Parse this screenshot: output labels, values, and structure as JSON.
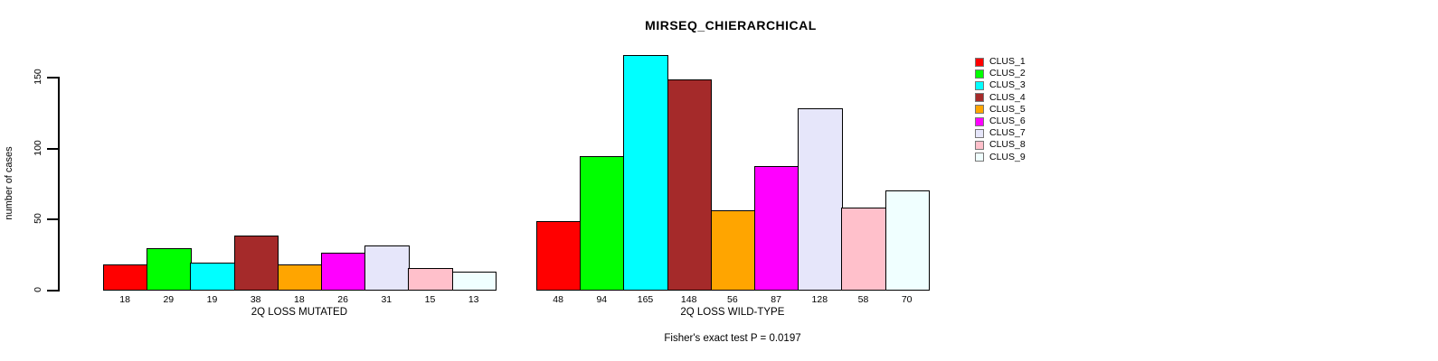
{
  "title": "MIRSEQ_CHIERARCHICAL",
  "footer": "Fisher's exact test P = 0.0197",
  "y_axis": {
    "label": "number of cases",
    "ticks": [
      0,
      50,
      100,
      150
    ]
  },
  "legend": {
    "position": "right",
    "entries": [
      {
        "label": "CLUS_1",
        "color": "#FF0000"
      },
      {
        "label": "CLUS_2",
        "color": "#00FF00"
      },
      {
        "label": "CLUS_3",
        "color": "#00FFFF"
      },
      {
        "label": "CLUS_4",
        "color": "#A52A2A"
      },
      {
        "label": "CLUS_5",
        "color": "#FFA500"
      },
      {
        "label": "CLUS_6",
        "color": "#FF00FF"
      },
      {
        "label": "CLUS_7",
        "color": "#E6E6FA"
      },
      {
        "label": "CLUS_8",
        "color": "#FFC0CB"
      },
      {
        "label": "CLUS_9",
        "color": "#F0FFFF"
      }
    ]
  },
  "chart_data": [
    {
      "type": "bar",
      "title": "",
      "xlabel": "2Q LOSS MUTATED",
      "ylabel": "number of cases",
      "categories": [
        "CLUS_1",
        "CLUS_2",
        "CLUS_3",
        "CLUS_4",
        "CLUS_5",
        "CLUS_6",
        "CLUS_7",
        "CLUS_8",
        "CLUS_9"
      ],
      "values": [
        18,
        29,
        19,
        38,
        18,
        26,
        31,
        15,
        13
      ],
      "colors": [
        "#FF0000",
        "#00FF00",
        "#00FFFF",
        "#A52A2A",
        "#FFA500",
        "#FF00FF",
        "#E6E6FA",
        "#FFC0CB",
        "#F0FFFF"
      ],
      "ylim": [
        0,
        165
      ],
      "grid": false,
      "value_labels_below_bars": true
    },
    {
      "type": "bar",
      "title": "",
      "xlabel": "2Q LOSS WILD-TYPE",
      "ylabel": "number of cases",
      "categories": [
        "CLUS_1",
        "CLUS_2",
        "CLUS_3",
        "CLUS_4",
        "CLUS_5",
        "CLUS_6",
        "CLUS_7",
        "CLUS_8",
        "CLUS_9"
      ],
      "values": [
        48,
        94,
        165,
        148,
        56,
        87,
        128,
        58,
        70
      ],
      "colors": [
        "#FF0000",
        "#00FF00",
        "#00FFFF",
        "#A52A2A",
        "#FFA500",
        "#FF00FF",
        "#E6E6FA",
        "#FFC0CB",
        "#F0FFFF"
      ],
      "ylim": [
        0,
        165
      ],
      "grid": false,
      "value_labels_below_bars": true
    }
  ]
}
